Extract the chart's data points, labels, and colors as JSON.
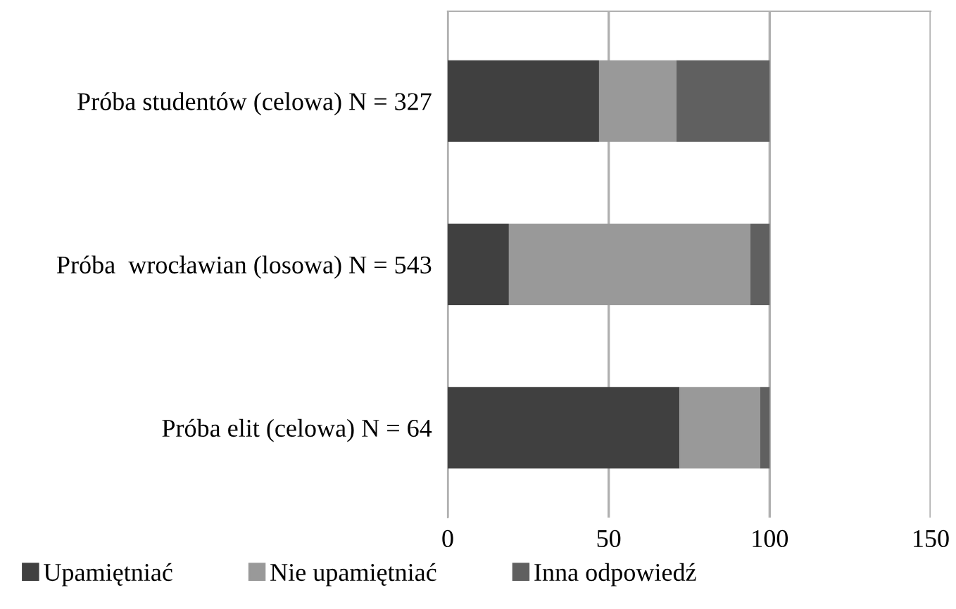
{
  "chart_data": {
    "type": "bar",
    "orientation": "horizontal",
    "stacked": true,
    "categories": [
      "Próba studentów (celowa) N = 327",
      "Próba  wrocławian (losowa) N = 543",
      "Próba elit (celowa) N = 64"
    ],
    "series": [
      {
        "name": "Upamiętniać",
        "color": "#404040",
        "values": [
          47,
          19,
          72
        ]
      },
      {
        "name": "Nie upamiętniać",
        "color": "#999999",
        "values": [
          24,
          75,
          25
        ]
      },
      {
        "name": "Inna odpowiedź",
        "color": "#606060",
        "values": [
          29,
          6,
          3
        ]
      }
    ],
    "xlim": [
      0,
      150
    ],
    "xticks": [
      0,
      50,
      100,
      150
    ],
    "grid": "x",
    "legend": "bottom"
  }
}
